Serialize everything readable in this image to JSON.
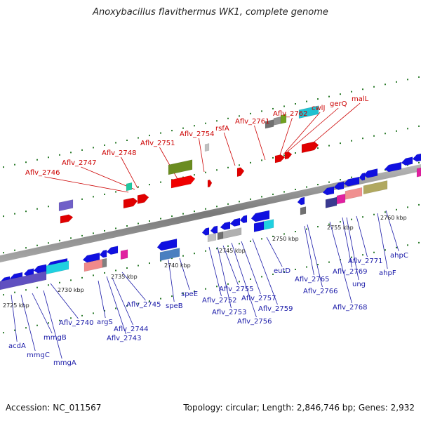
{
  "title": "Anoxybacillus flavithermus WK1, complete genome",
  "accession_text": "Accession: NC_011567",
  "summary_text": "Topology: circular; Length: 2,846,746 bp; Genes: 2,932",
  "colors": {
    "upper_strand_label": "#cc0000",
    "lower_strand_label": "#1a1aa8",
    "backbone": "#8a8a8a",
    "tick_mark": "#2a7a2a"
  },
  "ticks": [
    "2725 kbp",
    "2730 kbp",
    "2735 kbp",
    "2740 kbp",
    "2745 kbp",
    "2750 kbp",
    "2755 kbp",
    "2760 kbp"
  ],
  "upper_labels": [
    "Aflv_2746",
    "Aflv_2747",
    "Aflv_2748",
    "Aflv_2751",
    "Aflv_2754",
    "rsfA",
    "Aflv_2761",
    "Aflv_2762",
    "cwlJ",
    "gerQ",
    "malL"
  ],
  "lower_labels": [
    "acdA",
    "mmgC",
    "mmgB",
    "mmgA",
    "Aflv_2740",
    "argS",
    "Aflv_2744",
    "Aflv_2743",
    "Aflv_2745",
    "speB",
    "speE",
    "Aflv_2752",
    "Aflv_2753",
    "Aflv_2755",
    "Aflv_2756",
    "Aflv_2757",
    "Aflv_2759",
    "eutD",
    "Aflv_2765",
    "Aflv_2766",
    "Aflv_2768",
    "ung",
    "Aflv_2769",
    "Aflv_2771",
    "ahpF",
    "ahpC"
  ]
}
